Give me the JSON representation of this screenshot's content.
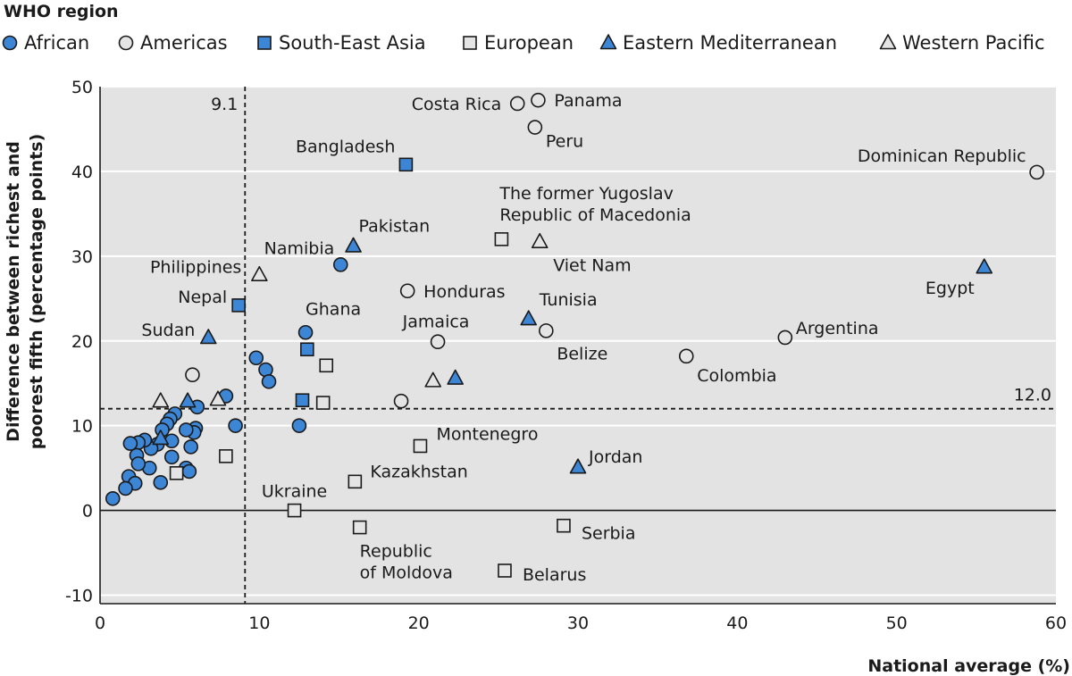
{
  "colors": {
    "african": "#3d86d6",
    "sea": "#3d86d6",
    "em": "#3d86d6",
    "americas": "#e4e4e4",
    "european": "#e4e4e4",
    "wp": "#e4e4e4",
    "plot_bg": "#e3e3e3",
    "stroke": "#1a1a1a"
  },
  "chart_data": {
    "type": "scatter",
    "legend_title": "WHO region",
    "xlabel": "National average (%)",
    "ylabel_line1": "Difference between richest and",
    "ylabel_line2": "poorest fifth (percentage points)",
    "xlim": [
      0,
      60
    ],
    "ylim": [
      -11,
      50
    ],
    "xticks": [
      0,
      10,
      20,
      30,
      40,
      50,
      60
    ],
    "yticks": [
      -10,
      0,
      10,
      20,
      30,
      40,
      50
    ],
    "grid": true,
    "legend_position": "top",
    "reference_lines": [
      {
        "orientation": "vertical",
        "value": 9.1,
        "label": "9.1"
      },
      {
        "orientation": "horizontal",
        "value": 12.0,
        "label": "12.0"
      }
    ],
    "series": [
      {
        "name": "African",
        "marker": "circle",
        "fill": "blue",
        "points": [
          {
            "x": 15.1,
            "y": 29.0,
            "label": "Namibia"
          },
          {
            "x": 12.9,
            "y": 21.0,
            "label": "Ghana"
          },
          {
            "x": 9.8,
            "y": 18.0
          },
          {
            "x": 10.4,
            "y": 16.6
          },
          {
            "x": 10.6,
            "y": 15.2
          },
          {
            "x": 8.5,
            "y": 10.0
          },
          {
            "x": 12.5,
            "y": 10.0
          },
          {
            "x": 7.9,
            "y": 13.5
          },
          {
            "x": 6.1,
            "y": 12.2
          },
          {
            "x": 6.0,
            "y": 9.7
          },
          {
            "x": 5.9,
            "y": 9.2
          },
          {
            "x": 5.4,
            "y": 9.5
          },
          {
            "x": 5.7,
            "y": 7.5
          },
          {
            "x": 5.4,
            "y": 5.0
          },
          {
            "x": 5.6,
            "y": 4.6
          },
          {
            "x": 4.7,
            "y": 11.4
          },
          {
            "x": 4.4,
            "y": 10.8
          },
          {
            "x": 4.2,
            "y": 10.2
          },
          {
            "x": 3.9,
            "y": 9.5
          },
          {
            "x": 4.5,
            "y": 8.2
          },
          {
            "x": 3.6,
            "y": 7.8
          },
          {
            "x": 3.2,
            "y": 7.3
          },
          {
            "x": 2.8,
            "y": 8.3
          },
          {
            "x": 2.4,
            "y": 8.0
          },
          {
            "x": 1.9,
            "y": 7.9
          },
          {
            "x": 2.3,
            "y": 6.5
          },
          {
            "x": 3.1,
            "y": 5.0
          },
          {
            "x": 2.4,
            "y": 5.5
          },
          {
            "x": 1.8,
            "y": 4.0
          },
          {
            "x": 2.2,
            "y": 3.2
          },
          {
            "x": 1.6,
            "y": 2.6
          },
          {
            "x": 3.8,
            "y": 3.3
          },
          {
            "x": 4.5,
            "y": 6.3
          },
          {
            "x": 0.8,
            "y": 1.4
          }
        ]
      },
      {
        "name": "Americas",
        "marker": "circle",
        "fill": "grey",
        "points": [
          {
            "x": 26.2,
            "y": 48.0,
            "label": "Costa Rica"
          },
          {
            "x": 27.5,
            "y": 48.4,
            "label": "Panama"
          },
          {
            "x": 27.3,
            "y": 45.2,
            "label": "Peru"
          },
          {
            "x": 58.8,
            "y": 39.9,
            "label": "Dominican Republic"
          },
          {
            "x": 19.3,
            "y": 25.9,
            "label": "Honduras"
          },
          {
            "x": 21.2,
            "y": 19.9,
            "label": "Jamaica"
          },
          {
            "x": 28.0,
            "y": 21.2,
            "label": "Belize"
          },
          {
            "x": 43.0,
            "y": 20.4,
            "label": "Argentina"
          },
          {
            "x": 36.8,
            "y": 18.2,
            "label": "Colombia"
          },
          {
            "x": 18.9,
            "y": 12.9
          },
          {
            "x": 5.8,
            "y": 16.0
          }
        ]
      },
      {
        "name": "South-East Asia",
        "marker": "square",
        "fill": "blue",
        "points": [
          {
            "x": 19.2,
            "y": 40.8,
            "label": "Bangladesh"
          },
          {
            "x": 8.7,
            "y": 24.2,
            "label": "Nepal"
          },
          {
            "x": 13.0,
            "y": 19.0
          },
          {
            "x": 12.7,
            "y": 13.0
          }
        ]
      },
      {
        "name": "European",
        "marker": "square",
        "fill": "grey",
        "points": [
          {
            "x": 25.2,
            "y": 32.0,
            "label": "The former Yugoslav Republic of Macedonia"
          },
          {
            "x": 20.1,
            "y": 7.6,
            "label": "Montenegro"
          },
          {
            "x": 16.0,
            "y": 3.4,
            "label": "Kazakhstan"
          },
          {
            "x": 12.2,
            "y": 0.0,
            "label": "Ukraine"
          },
          {
            "x": 16.3,
            "y": -2.0,
            "label": "Republic of Moldova"
          },
          {
            "x": 29.1,
            "y": -1.8,
            "label": "Serbia"
          },
          {
            "x": 25.4,
            "y": -7.1,
            "label": "Belarus"
          },
          {
            "x": 14.2,
            "y": 17.1
          },
          {
            "x": 14.0,
            "y": 12.7
          },
          {
            "x": 7.9,
            "y": 6.4
          },
          {
            "x": 4.8,
            "y": 4.4
          }
        ]
      },
      {
        "name": "Eastern Mediterranean",
        "marker": "triangle",
        "fill": "blue",
        "points": [
          {
            "x": 15.9,
            "y": 31.2,
            "label": "Pakistan"
          },
          {
            "x": 6.8,
            "y": 20.4,
            "label": "Sudan"
          },
          {
            "x": 26.9,
            "y": 22.6,
            "label": "Tunisia"
          },
          {
            "x": 55.5,
            "y": 28.7,
            "label": "Egypt"
          },
          {
            "x": 30.0,
            "y": 5.1,
            "label": "Jordan"
          },
          {
            "x": 22.3,
            "y": 15.6
          },
          {
            "x": 5.5,
            "y": 12.9
          },
          {
            "x": 3.8,
            "y": 8.5
          }
        ]
      },
      {
        "name": "Western Pacific",
        "marker": "triangle",
        "fill": "grey",
        "points": [
          {
            "x": 10.0,
            "y": 27.8,
            "label": "Philippines"
          },
          {
            "x": 27.6,
            "y": 31.7,
            "label": "Viet Nam"
          },
          {
            "x": 20.9,
            "y": 15.3
          },
          {
            "x": 7.4,
            "y": 13.1
          },
          {
            "x": 3.8,
            "y": 12.9
          }
        ]
      }
    ]
  }
}
